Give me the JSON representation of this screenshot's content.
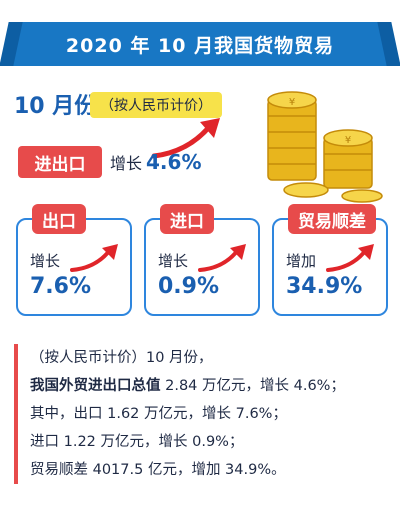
{
  "header": {
    "title": "2020 年 10 月我国货物贸易"
  },
  "period": {
    "month": "10 月份",
    "currency_note": "（按人民币计价）"
  },
  "total": {
    "label": "进出口",
    "change_prefix": "增长",
    "change_value": "4.6%"
  },
  "cards": [
    {
      "label": "出口",
      "change_prefix": "增长",
      "value": "7.6%"
    },
    {
      "label": "进口",
      "change_prefix": "增长",
      "value": "0.9%"
    },
    {
      "label": "贸易顺差",
      "change_prefix": "增加",
      "value": "34.9%"
    }
  ],
  "details": {
    "line1": "（按人民币计价）10 月份，",
    "line2_bold": "我国外贸进出口总值",
    "line2_rest": " 2.84 万亿元，增长 4.6%；",
    "line3": "其中，出口 1.62 万亿元，增长 7.6%；",
    "line4": "进口 1.22 万亿元，增长 0.9%；",
    "line5": "贸易顺差 4017.5 亿元，增加 34.9%。"
  },
  "colors": {
    "accent_blue": "#1877c4",
    "accent_red": "#e74b4b",
    "tag_yellow": "#f7e24a",
    "coin_gold": "#e8b51d"
  },
  "icons": [
    "up-arrow-icon",
    "gold-coins-icon"
  ]
}
